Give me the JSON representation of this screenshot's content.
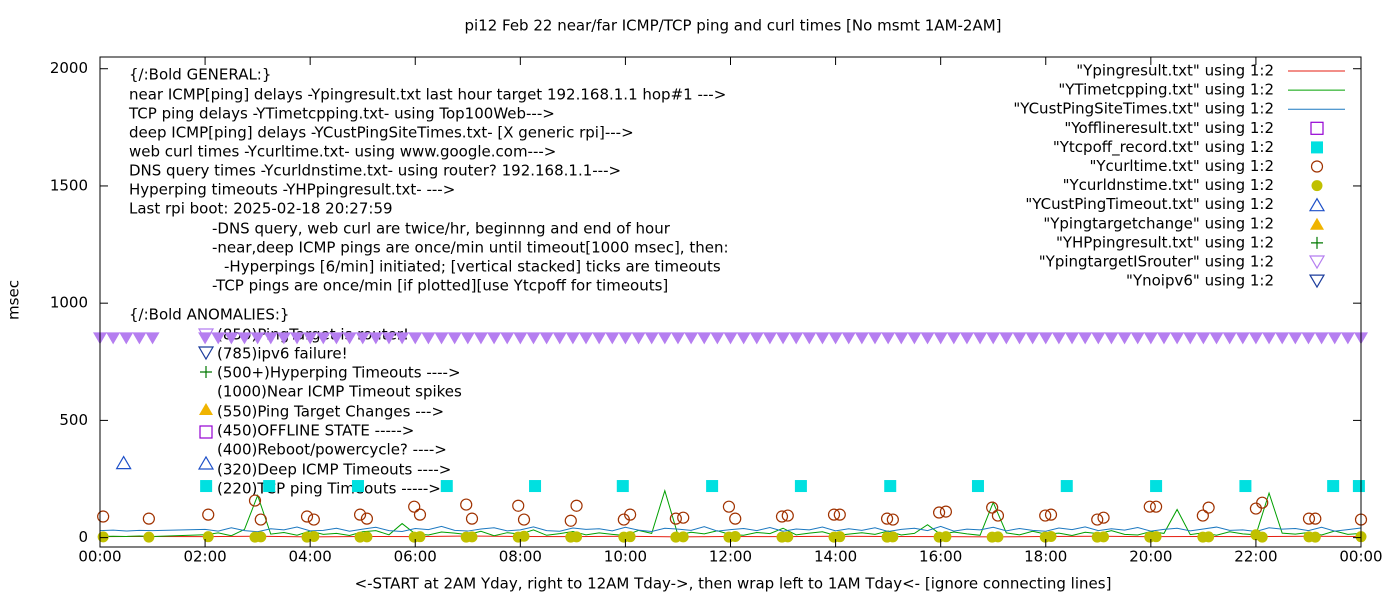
{
  "chart_data": {
    "type": "line",
    "title": "pi12 Feb 22  near/far ICMP/TCP ping and curl times [No msmt 1AM-2AM]",
    "x_label": "<-START at 2AM Yday, right to 12AM Tday->, then wrap left to 1AM Tday<- [ignore connecting lines]",
    "y_label": "msec",
    "xlim": [
      0,
      24
    ],
    "ylim": [
      -40,
      2050
    ],
    "xticks": [
      {
        "value": 0,
        "label": "00:00"
      },
      {
        "value": 2,
        "label": "02:00"
      },
      {
        "value": 4,
        "label": "04:00"
      },
      {
        "value": 6,
        "label": "06:00"
      },
      {
        "value": 8,
        "label": "08:00"
      },
      {
        "value": 10,
        "label": "10:00"
      },
      {
        "value": 12,
        "label": "12:00"
      },
      {
        "value": 14,
        "label": "14:00"
      },
      {
        "value": 16,
        "label": "16:00"
      },
      {
        "value": 18,
        "label": "18:00"
      },
      {
        "value": 20,
        "label": "20:00"
      },
      {
        "value": 22,
        "label": "22:00"
      },
      {
        "value": 24,
        "label": "00:00"
      }
    ],
    "yticks": [
      0,
      500,
      1000,
      1500,
      2000
    ],
    "grid": false,
    "legend": "top-right",
    "annotations": [
      "{/:Bold GENERAL:}",
      "near ICMP[ping] delays -Ypingresult.txt last hour target 192.168.1.1 hop#1 --->",
      "TCP ping delays -YTimetcpping.txt- using Top100Web--->",
      "deep ICMP[ping] delays -YCustPingSiteTimes.txt- [X generic rpi]--->",
      "web curl times -Ycurltime.txt- using www.google.com--->",
      "DNS query times -Ycurldnstime.txt- using router? 192.168.1.1--->",
      "Hyperping timeouts -YHPpingresult.txt- --->",
      "Last rpi boot: 2025-02-18 20:27:59",
      "-DNS query, web curl are twice/hr, beginnng and end of hour",
      "-near,deep ICMP pings are once/min until timeout[1000 msec], then:",
      "-Hyperpings [6/min] initiated; [vertical stacked] ticks are timeouts",
      "-TCP pings are once/min [if plotted][use Ytcpoff for timeouts]",
      "{/:Bold ANOMALIES:}",
      "(850)PingTarget is router!",
      "(785)ipv6 failure!",
      "(500+)Hyperping Timeouts ---->",
      "(1000)Near ICMP Timeout spikes",
      "(550)Ping Target Changes --->",
      "(450)OFFLINE STATE ----->",
      "(400)Reboot/powercycle? ---->",
      "(320)Deep ICMP Timeouts ---->",
      "(220)TCP ping Timeouts ----->"
    ],
    "series": [
      {
        "name": "\"Ypingresult.txt\" using 1:2",
        "style": "line",
        "color": "#e51e10",
        "x": [
          0,
          1,
          2,
          3,
          4,
          5,
          6,
          7,
          8,
          9,
          10,
          11,
          12,
          13,
          14,
          15,
          16,
          17,
          18,
          19,
          20,
          21,
          22,
          23,
          24
        ],
        "values": [
          4,
          5,
          4,
          6,
          3,
          5,
          4,
          7,
          5,
          4,
          6,
          3,
          5,
          4,
          6,
          5,
          4,
          3,
          5,
          6,
          4,
          5,
          4,
          6,
          5
        ]
      },
      {
        "name": "\"YTimetcpping.txt\" using 1:2",
        "style": "line",
        "color": "#00a000",
        "x": [
          0,
          0.25,
          0.5,
          0.75,
          1,
          2,
          2.25,
          2.5,
          2.75,
          3,
          3.25,
          3.5,
          3.75,
          4,
          4.25,
          4.5,
          4.75,
          5,
          5.25,
          5.5,
          5.75,
          6,
          6.25,
          6.5,
          6.75,
          7,
          7.25,
          7.5,
          7.75,
          8,
          8.25,
          8.5,
          8.75,
          9,
          9.25,
          9.5,
          9.75,
          10,
          10.25,
          10.5,
          10.75,
          11,
          11.25,
          11.5,
          11.75,
          12,
          12.25,
          12.5,
          12.75,
          13,
          13.25,
          13.5,
          13.75,
          14,
          14.25,
          14.5,
          14.75,
          15,
          15.25,
          15.5,
          15.75,
          16,
          16.25,
          16.5,
          16.75,
          17,
          17.25,
          17.5,
          17.75,
          18,
          18.25,
          18.5,
          18.75,
          19,
          19.25,
          19.5,
          19.75,
          20,
          20.25,
          20.5,
          20.75,
          21,
          21.25,
          21.5,
          21.75,
          22,
          22.25,
          22.5,
          22.75,
          23,
          23.25,
          23.5,
          23.75,
          24
        ],
        "values": [
          5,
          6,
          5,
          7,
          5,
          12,
          20,
          8,
          35,
          180,
          15,
          22,
          10,
          28,
          14,
          18,
          9,
          25,
          30,
          12,
          60,
          16,
          11,
          24,
          19,
          13,
          27,
          8,
          21,
          15,
          33,
          10,
          17,
          26,
          12,
          20,
          14,
          9,
          31,
          18,
          200,
          11,
          23,
          16,
          29,
          13,
          10,
          22,
          17,
          40,
          12,
          19,
          25,
          9,
          15,
          21,
          14,
          28,
          11,
          18,
          55,
          13,
          24,
          16,
          10,
          150,
          20,
          12,
          27,
          15,
          19,
          9,
          23,
          17,
          30,
          14,
          11,
          26,
          18,
          120,
          13,
          21,
          10,
          25,
          16,
          12,
          190,
          19,
          15,
          22,
          11,
          28,
          14,
          18
        ]
      },
      {
        "name": "\"YCustPingSiteTimes.txt\" using 1:2",
        "style": "line",
        "color": "#1c78c0",
        "x": [
          0,
          0.25,
          0.5,
          0.75,
          1,
          2,
          2.25,
          2.5,
          2.75,
          3,
          3.25,
          3.5,
          3.75,
          4,
          4.25,
          4.5,
          4.75,
          5,
          5.25,
          5.5,
          5.75,
          6,
          6.25,
          6.5,
          6.75,
          7,
          7.25,
          7.5,
          7.75,
          8,
          8.25,
          8.5,
          8.75,
          9,
          9.25,
          9.5,
          9.75,
          10,
          10.25,
          10.5,
          10.75,
          11,
          11.25,
          11.5,
          11.75,
          12,
          12.25,
          12.5,
          12.75,
          13,
          13.25,
          13.5,
          13.75,
          14,
          14.25,
          14.5,
          14.75,
          15,
          15.25,
          15.5,
          15.75,
          16,
          16.25,
          16.5,
          16.75,
          17,
          17.25,
          17.5,
          17.75,
          18,
          18.25,
          18.5,
          18.75,
          19,
          19.25,
          19.5,
          19.75,
          20,
          20.25,
          20.5,
          20.75,
          21,
          21.25,
          21.5,
          21.75,
          22,
          22.25,
          22.5,
          22.75,
          23,
          23.25,
          23.5,
          23.75,
          24
        ],
        "values": [
          30,
          32,
          28,
          31,
          30,
          35,
          28,
          42,
          30,
          25,
          38,
          33,
          45,
          29,
          31,
          40,
          27,
          36,
          44,
          30,
          26,
          39,
          34,
          48,
          31,
          28,
          37,
          42,
          29,
          33,
          46,
          30,
          27,
          41,
          35,
          38,
          29,
          44,
          32,
          26,
          40,
          36,
          31,
          47,
          28,
          34,
          39,
          30,
          43,
          27,
          37,
          33,
          45,
          29,
          38,
          31,
          42,
          26,
          35,
          40,
          30,
          48,
          28,
          36,
          33,
          44,
          29,
          39,
          31,
          27,
          41,
          34,
          46,
          30,
          38,
          32,
          43,
          28,
          35,
          40,
          29,
          37,
          45,
          31,
          33,
          26,
          42,
          36,
          39,
          30,
          44,
          28,
          34,
          41
        ]
      },
      {
        "name": "\"Yofflineresult.txt\" using 1:2",
        "style": "marker",
        "marker": "square-open",
        "color": "#9400d3",
        "x": [],
        "values": []
      },
      {
        "name": "\"Ytcpoff_record.txt\" using 1:2",
        "style": "marker",
        "marker": "square",
        "color": "#00e0e0",
        "x": [
          2.02,
          3.22,
          4.91,
          6.6,
          8.28,
          9.95,
          11.65,
          13.34,
          15.04,
          16.71,
          18.4,
          20.1,
          21.8,
          23.47,
          23.96
        ],
        "values": [
          220,
          220,
          220,
          220,
          220,
          220,
          220,
          220,
          220,
          220,
          220,
          220,
          220,
          220,
          220
        ]
      },
      {
        "name": "\"Ycurltime.txt\" using 1:2",
        "style": "marker",
        "marker": "circle-open",
        "color": "#a03200",
        "x": [
          0.06,
          0.93,
          2.06,
          2.95,
          3.06,
          3.94,
          4.07,
          4.95,
          5.08,
          5.98,
          6.09,
          6.97,
          7.08,
          7.96,
          8.07,
          8.96,
          9.07,
          9.97,
          10.09,
          10.96,
          11.1,
          11.97,
          12.09,
          12.98,
          13.09,
          13.97,
          14.08,
          14.98,
          15.09,
          15.97,
          16.1,
          16.98,
          17.09,
          17.99,
          18.1,
          18.98,
          19.1,
          19.98,
          20.1,
          20.99,
          21.1,
          22.0,
          22.12,
          23.01,
          23.13,
          24.0
        ],
        "values": [
          90,
          81,
          98,
          158,
          77,
          90,
          77,
          98,
          81,
          132,
          98,
          141,
          81,
          136,
          77,
          72,
          136,
          77,
          98,
          81,
          85,
          132,
          81,
          90,
          94,
          98,
          98,
          81,
          77,
          107,
          111,
          128,
          94,
          94,
          98,
          77,
          85,
          132,
          132,
          94,
          128,
          124,
          149,
          81,
          81,
          77
        ]
      },
      {
        "name": "\"Ycurldnstime.txt\" using 1:2",
        "style": "marker",
        "marker": "circle",
        "color": "#c0c000",
        "x": [
          0.06,
          0.93,
          2.06,
          2.95,
          3.06,
          3.94,
          4.07,
          4.95,
          5.08,
          5.98,
          6.09,
          6.97,
          7.08,
          7.96,
          8.07,
          8.96,
          9.07,
          9.97,
          10.09,
          10.96,
          11.1,
          11.97,
          12.09,
          12.98,
          13.09,
          13.97,
          14.08,
          14.98,
          15.09,
          15.97,
          16.1,
          16.98,
          17.09,
          17.99,
          18.1,
          18.98,
          19.1,
          19.98,
          20.1,
          20.99,
          21.1,
          22.0,
          22.12,
          23.01,
          23.13,
          24.0
        ],
        "values": [
          3,
          2,
          4,
          2,
          3,
          2,
          5,
          2,
          3,
          2,
          4,
          2,
          3,
          2,
          6,
          2,
          3,
          2,
          4,
          2,
          3,
          2,
          5,
          2,
          3,
          2,
          4,
          2,
          3,
          2,
          4,
          2,
          3,
          2,
          5,
          2,
          3,
          2,
          4,
          2,
          3,
          12,
          2,
          3,
          2,
          4
        ]
      },
      {
        "name": "\"YCustPingTimeout.txt\" using 1:2",
        "style": "marker",
        "marker": "triangle-open",
        "color": "#1e50c8",
        "x": [
          0.45
        ],
        "values": [
          320
        ]
      },
      {
        "name": "\"Ypingtargetchange\" using 1:2",
        "style": "marker",
        "marker": "triangle",
        "color": "#f0b400",
        "x": [],
        "values": []
      },
      {
        "name": "\"YHPpingresult.txt\" using 1:2",
        "style": "marker",
        "marker": "plus",
        "color": "#007800",
        "x": [],
        "values": []
      },
      {
        "name": "\"YpingtargetISrouter\" using 1:2",
        "style": "marker",
        "marker": "triangle-down",
        "color": "#b57ef0",
        "x": [
          0,
          0.25,
          0.5,
          0.75,
          1,
          2,
          2.25,
          2.5,
          2.75,
          3,
          3.25,
          3.5,
          3.75,
          4,
          4.25,
          4.5,
          4.75,
          5,
          5.25,
          5.5,
          5.75,
          6,
          6.25,
          6.5,
          6.75,
          7,
          7.25,
          7.5,
          7.75,
          8,
          8.25,
          8.5,
          8.75,
          9,
          9.25,
          9.5,
          9.75,
          10,
          10.25,
          10.5,
          10.75,
          11,
          11.25,
          11.5,
          11.75,
          12,
          12.25,
          12.5,
          12.75,
          13,
          13.25,
          13.5,
          13.75,
          14,
          14.25,
          14.5,
          14.75,
          15,
          15.25,
          15.5,
          15.75,
          16,
          16.25,
          16.5,
          16.75,
          17,
          17.25,
          17.5,
          17.75,
          18,
          18.25,
          18.5,
          18.75,
          19,
          19.25,
          19.5,
          19.75,
          20,
          20.25,
          20.5,
          20.75,
          21,
          21.25,
          21.5,
          21.75,
          22,
          22.25,
          22.5,
          22.75,
          23,
          23.25,
          23.5,
          23.75,
          24
        ],
        "values": [
          850,
          850,
          850,
          850,
          850,
          850,
          850,
          850,
          850,
          850,
          850,
          850,
          850,
          850,
          850,
          850,
          850,
          850,
          850,
          850,
          850,
          850,
          850,
          850,
          850,
          850,
          850,
          850,
          850,
          850,
          850,
          850,
          850,
          850,
          850,
          850,
          850,
          850,
          850,
          850,
          850,
          850,
          850,
          850,
          850,
          850,
          850,
          850,
          850,
          850,
          850,
          850,
          850,
          850,
          850,
          850,
          850,
          850,
          850,
          850,
          850,
          850,
          850,
          850,
          850,
          850,
          850,
          850,
          850,
          850,
          850,
          850,
          850,
          850,
          850,
          850,
          850,
          850,
          850,
          850,
          850,
          850,
          850,
          850,
          850,
          850,
          850,
          850,
          850,
          850,
          850,
          850,
          850,
          850
        ]
      },
      {
        "name": "\"Ynoipv6\" using 1:2",
        "style": "marker",
        "marker": "triangle-down-open",
        "color": "#1c3c9c",
        "x": [],
        "values": []
      }
    ]
  }
}
